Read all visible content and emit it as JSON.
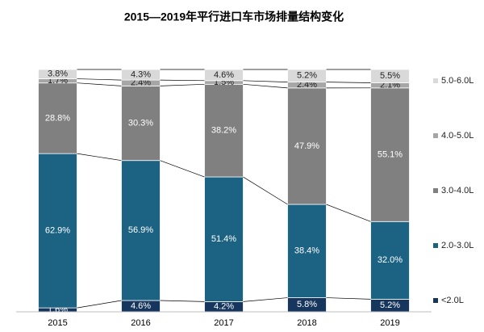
{
  "chart_data": {
    "type": "stacked_bar_100",
    "title": "2015—2019年平行进口车市场排量结构变化",
    "categories": [
      "2015",
      "2016",
      "2017",
      "2018",
      "2019"
    ],
    "series": [
      {
        "name": "<2.0L",
        "color": "#17365d",
        "values": [
          1.6,
          4.6,
          4.2,
          5.8,
          5.2
        ],
        "value_labels": [
          "1.6%",
          "4.6%",
          "4.2%",
          "5.8%",
          "5.2%"
        ]
      },
      {
        "name": "2.0-3.0L",
        "color": "#1c6383",
        "values": [
          62.9,
          56.9,
          51.4,
          38.4,
          32.0
        ],
        "value_labels": [
          "62.9%",
          "56.9%",
          "51.4%",
          "38.4%",
          "32.0%"
        ]
      },
      {
        "name": "3.0-4.0L",
        "color": "#808080",
        "values": [
          28.8,
          30.3,
          38.2,
          47.9,
          55.1
        ],
        "value_labels": [
          "28.8%",
          "30.3%",
          "38.2%",
          "47.9%",
          "55.1%"
        ]
      },
      {
        "name": "4.0-5.0L",
        "color": "#a6a6a6",
        "values": [
          1.7,
          2.4,
          1.5,
          2.4,
          2.1
        ],
        "value_labels": [
          "1.7%",
          "2.4%",
          "1.5%",
          "2.4%",
          "2.1%"
        ]
      },
      {
        "name": "5.0-6.0L",
        "color": "#d9d9d9",
        "values": [
          3.8,
          4.3,
          4.6,
          5.2,
          5.5
        ],
        "value_labels": [
          "3.8%",
          "4.3%",
          "4.6%",
          "5.2%",
          "5.5%"
        ]
      }
    ],
    "legend": "right"
  }
}
